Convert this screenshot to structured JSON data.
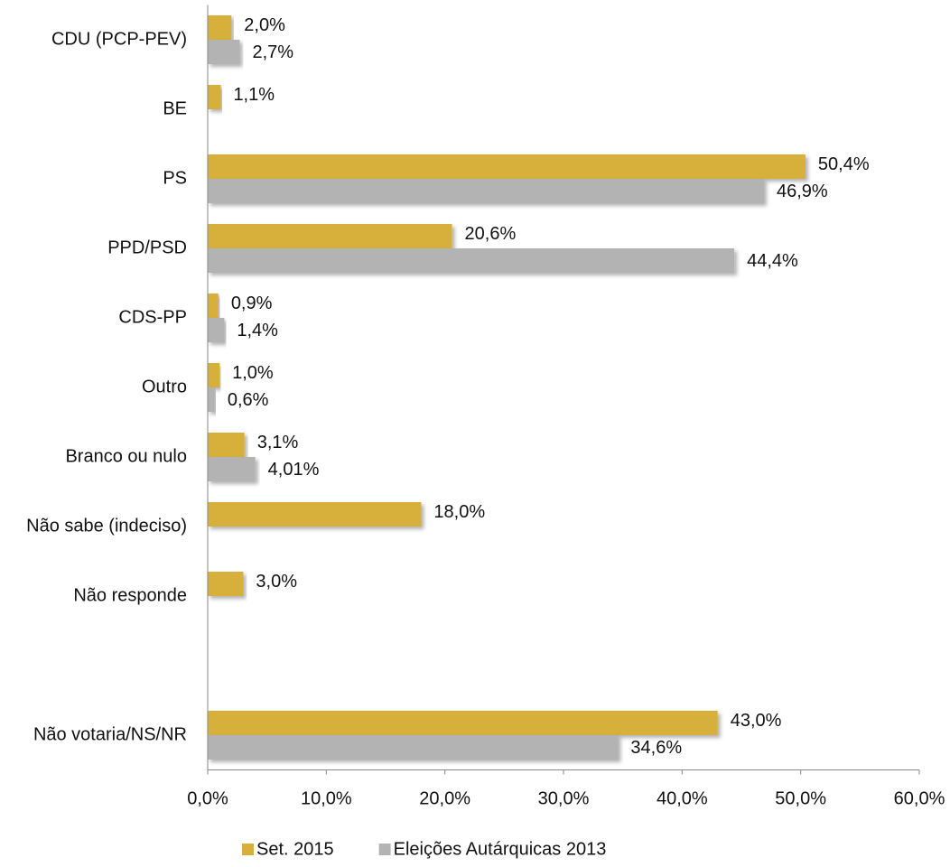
{
  "chart_data": {
    "type": "bar",
    "orientation": "horizontal",
    "categories": [
      "CDU (PCP-PEV)",
      "BE",
      "PS",
      "PPD/PSD",
      "CDS-PP",
      "Outro",
      "Branco ou nulo",
      "Não sabe (indeciso)",
      "Não responde",
      null,
      "Não votaria/NS/NR"
    ],
    "series": [
      {
        "name": "Set. 2015",
        "color": "#d6b03b",
        "values": [
          2.0,
          1.1,
          50.4,
          20.6,
          0.9,
          1.0,
          3.1,
          18.0,
          3.0,
          null,
          43.0
        ],
        "value_labels": [
          "2,0%",
          "1,1%",
          "50,4%",
          "20,6%",
          "0,9%",
          "1,0%",
          "3,1%",
          "18,0%",
          "3,0%",
          null,
          "43,0%"
        ]
      },
      {
        "name": "Eleições Autárquicas 2013",
        "color": "#b3b3b3",
        "values": [
          2.7,
          null,
          46.9,
          44.4,
          1.4,
          0.6,
          4.01,
          null,
          null,
          null,
          34.6
        ],
        "value_labels": [
          "2,7%",
          null,
          "46,9%",
          "44,4%",
          "1,4%",
          "0,6%",
          "4,01%",
          null,
          null,
          null,
          "34,6%"
        ]
      }
    ],
    "xlim": [
      0,
      60
    ],
    "xticks": [
      {
        "value": 0,
        "label": "0,0%"
      },
      {
        "value": 10,
        "label": "10,0%"
      },
      {
        "value": 20,
        "label": "20,0%"
      },
      {
        "value": 30,
        "label": "30,0%"
      },
      {
        "value": 40,
        "label": "40,0%"
      },
      {
        "value": 50,
        "label": "50,0%"
      },
      {
        "value": 60,
        "label": "60,0%"
      }
    ],
    "legend": "bottom",
    "grid": false
  }
}
